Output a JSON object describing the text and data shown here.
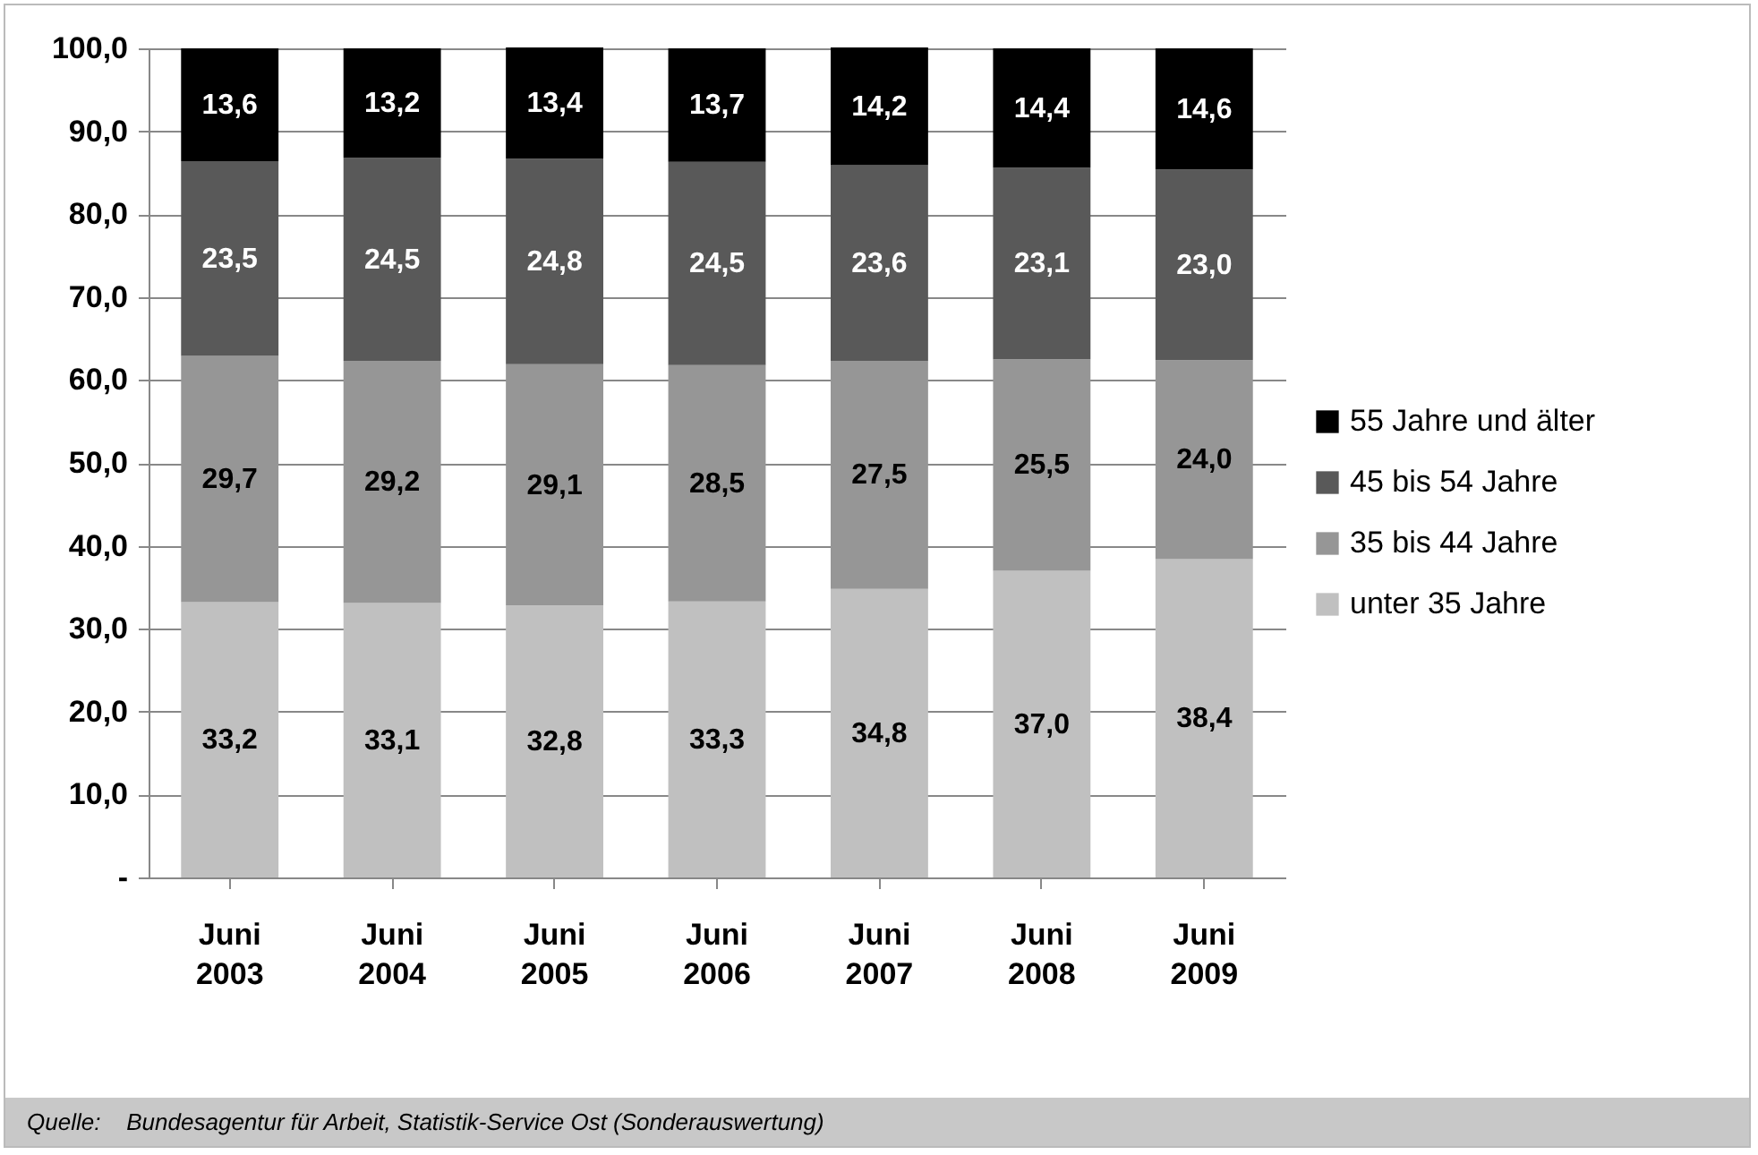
{
  "chart_data": {
    "type": "bar",
    "stacked": true,
    "legend": "right",
    "grid": "y",
    "categories": [
      "Juni 2003",
      "Juni 2004",
      "Juni 2005",
      "Juni 2006",
      "Juni 2007",
      "Juni 2008",
      "Juni 2009"
    ],
    "ylim": [
      0,
      100
    ],
    "yticks": [
      {
        "value": 0,
        "label": "-"
      },
      {
        "value": 10,
        "label": "10,0"
      },
      {
        "value": 20,
        "label": "20,0"
      },
      {
        "value": 30,
        "label": "30,0"
      },
      {
        "value": 40,
        "label": "40,0"
      },
      {
        "value": 50,
        "label": "50,0"
      },
      {
        "value": 60,
        "label": "60,0"
      },
      {
        "value": 70,
        "label": "70,0"
      },
      {
        "value": 80,
        "label": "80,0"
      },
      {
        "value": 90,
        "label": "90,0"
      },
      {
        "value": 100,
        "label": "100,0"
      }
    ],
    "series": [
      {
        "name": "unter 35 Jahre",
        "color": "#c0c0c0",
        "values": [
          33.2,
          33.1,
          32.8,
          33.3,
          34.8,
          37.0,
          38.4
        ],
        "value_labels": [
          "33,2",
          "33,1",
          "32,8",
          "33,3",
          "34,8",
          "37,0",
          "38,4"
        ]
      },
      {
        "name": "35 bis 44 Jahre",
        "color": "#969696",
        "values": [
          29.7,
          29.2,
          29.1,
          28.5,
          27.5,
          25.5,
          24.0
        ],
        "value_labels": [
          "29,7",
          "29,2",
          "29,1",
          "28,5",
          "27,5",
          "25,5",
          "24,0"
        ]
      },
      {
        "name": "45 bis 54 Jahre",
        "color": "#595959",
        "values": [
          23.5,
          24.5,
          24.8,
          24.5,
          23.6,
          23.1,
          23.0
        ],
        "value_labels": [
          "23,5",
          "24,5",
          "24,8",
          "24,5",
          "23,6",
          "23,1",
          "23,0"
        ]
      },
      {
        "name": "55 Jahre und älter",
        "color": "#000000",
        "values": [
          13.6,
          13.2,
          13.4,
          13.7,
          14.2,
          14.4,
          14.6
        ],
        "value_labels": [
          "13,6",
          "13,2",
          "13,4",
          "13,7",
          "14,2",
          "14,4",
          "14,6"
        ]
      }
    ],
    "annotations": [
      "Quelle:    Bundesagentur für Arbeit, Statistik-Service Ost (Sonderauswertung)"
    ]
  }
}
